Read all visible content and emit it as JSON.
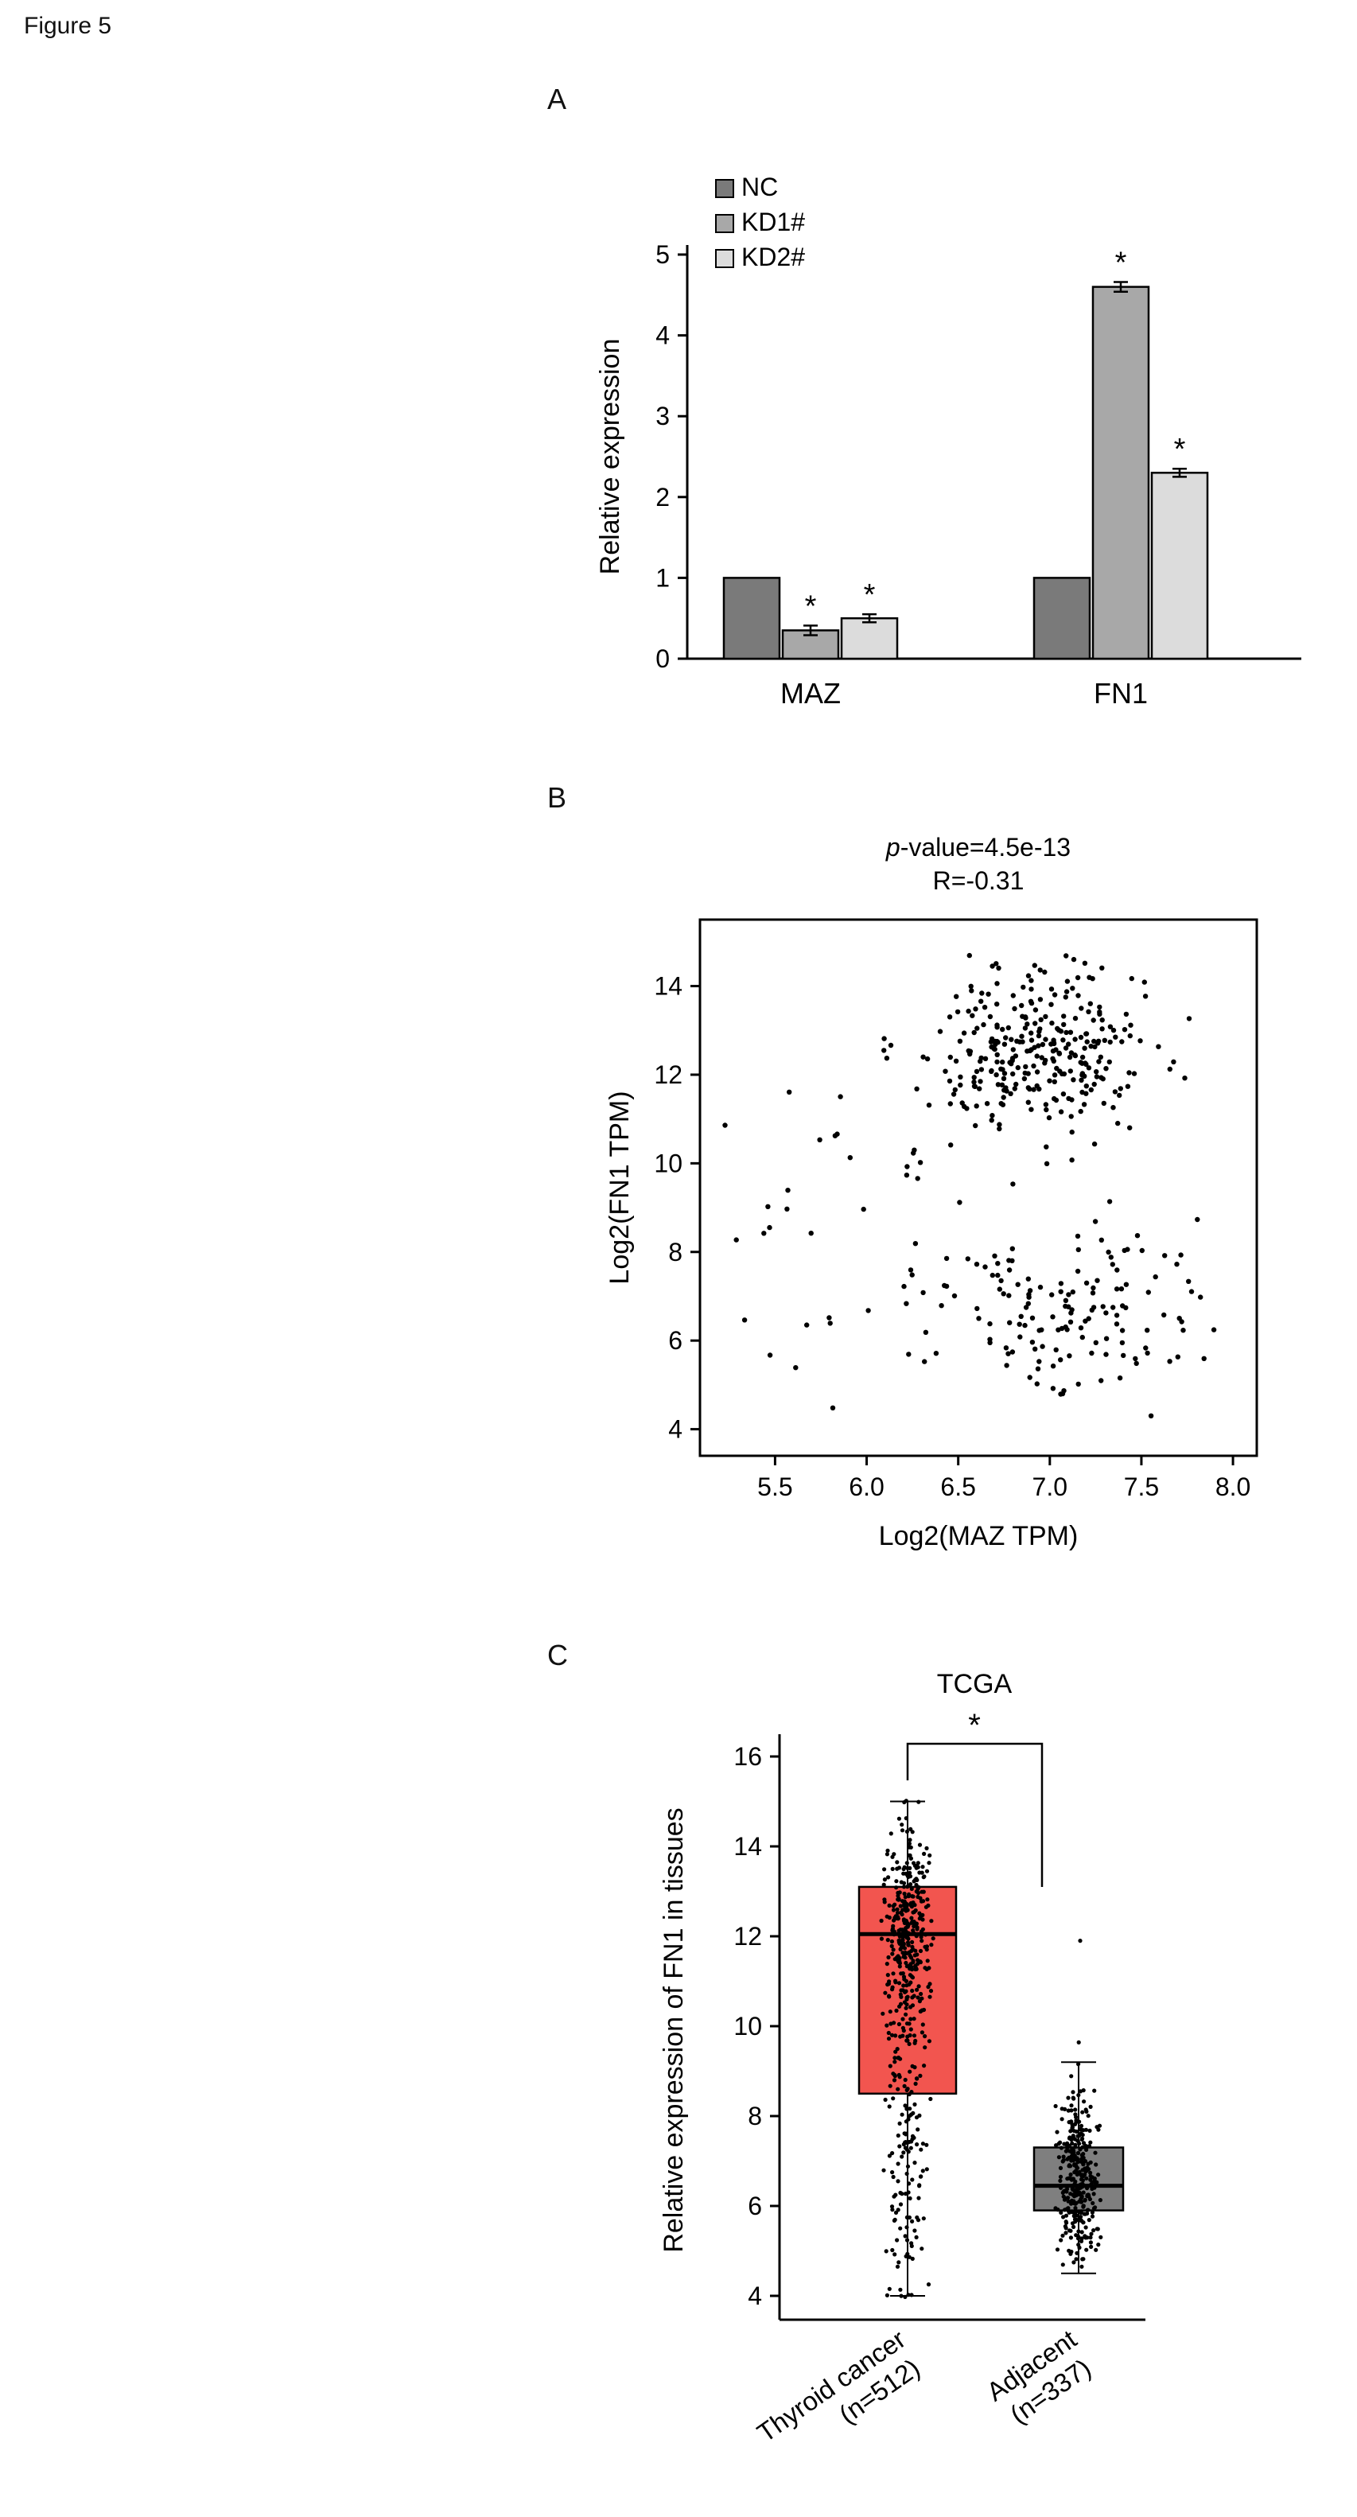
{
  "figure": {
    "title": "Figure 5"
  },
  "colors": {
    "background": "#ffffff",
    "axis": "#000000",
    "text": "#000000"
  },
  "chart_data": [
    {
      "panel_label": "A",
      "type": "bar",
      "ylabel": "Relative expression",
      "ylim": [
        0,
        5
      ],
      "yticks": [
        0,
        1,
        2,
        3,
        4,
        5
      ],
      "categories": [
        "MAZ",
        "FN1"
      ],
      "series": [
        {
          "name": "NC",
          "color": "#7a7a7a",
          "values": [
            1.0,
            1.0
          ],
          "errors": [
            0,
            0
          ],
          "sig": [
            false,
            false
          ]
        },
        {
          "name": "KD1#",
          "color": "#a8a8a8",
          "values": [
            0.35,
            4.6
          ],
          "errors": [
            0.06,
            0.06
          ],
          "sig": [
            true,
            true
          ]
        },
        {
          "name": "KD2#",
          "color": "#dcdcdc",
          "values": [
            0.5,
            2.3
          ],
          "errors": [
            0.05,
            0.05
          ],
          "sig": [
            true,
            true
          ]
        }
      ],
      "legend_position": "top-left",
      "sig_symbol": "*"
    },
    {
      "panel_label": "B",
      "type": "scatter",
      "title_line1": "p-value=4.5e-13",
      "title_line2": "R=-0.31",
      "xlabel": "Log2(MAZ TPM)",
      "ylabel": "Log2(FN1 TPM)",
      "xlim": [
        5.09,
        8.13
      ],
      "ylim": [
        3.4,
        15.5
      ],
      "xticks": [
        5.5,
        6.0,
        6.5,
        7.0,
        7.5,
        8.0
      ],
      "xtick_labels": [
        "5.5",
        "6.0",
        "6.5",
        "7.0",
        "7.5",
        "8.0"
      ],
      "yticks": [
        4,
        6,
        8,
        10,
        12,
        14
      ],
      "point_color": "#000000",
      "point_clusters": [
        {
          "name": "high-FN1-cluster",
          "n": 300,
          "x_mean": 6.95,
          "x_sd": 0.3,
          "y_mean": 12.6,
          "y_sd": 0.95
        },
        {
          "name": "low-FN1-cluster",
          "n": 150,
          "x_mean": 7.05,
          "x_sd": 0.38,
          "y_mean": 6.6,
          "y_sd": 1.0
        },
        {
          "name": "sparse-left",
          "n": 40,
          "x_mean": 5.95,
          "x_sd": 0.45,
          "y_mean": 9.2,
          "y_sd": 2.8
        }
      ],
      "seed": 20240305
    },
    {
      "panel_label": "C",
      "type": "box",
      "title": "TCGA",
      "ylabel": "Relative expression of FN1 in tissues",
      "ylim": [
        3.4,
        16.8
      ],
      "yticks": [
        4,
        6,
        8,
        10,
        12,
        14,
        16
      ],
      "sig_symbol": "*",
      "groups": [
        {
          "label_line1": "Thyroid cancer",
          "label_line2": "(n=512)",
          "box_color": "#f2554f",
          "q1": 8.5,
          "median": 12.05,
          "q3": 13.1,
          "whisker_low": 4.0,
          "whisker_high": 15.0,
          "point_components": [
            {
              "n": 330,
              "mean": 12.2,
              "sd": 1.15
            },
            {
              "n": 182,
              "mean": 8.0,
              "sd": 2.4
            }
          ],
          "point_range": [
            3.95,
            15.05
          ],
          "outliers": []
        },
        {
          "label_line1": "Adjacent",
          "label_line2": "(n=337)",
          "box_color": "#7f7f7f",
          "q1": 5.9,
          "median": 6.45,
          "q3": 7.3,
          "whisker_low": 4.5,
          "whisker_high": 9.2,
          "point_components": [
            {
              "n": 336,
              "mean": 6.6,
              "sd": 0.9
            }
          ],
          "point_range": [
            4.4,
            9.65
          ],
          "outliers": [
            11.9
          ]
        }
      ],
      "seed": 7
    }
  ]
}
